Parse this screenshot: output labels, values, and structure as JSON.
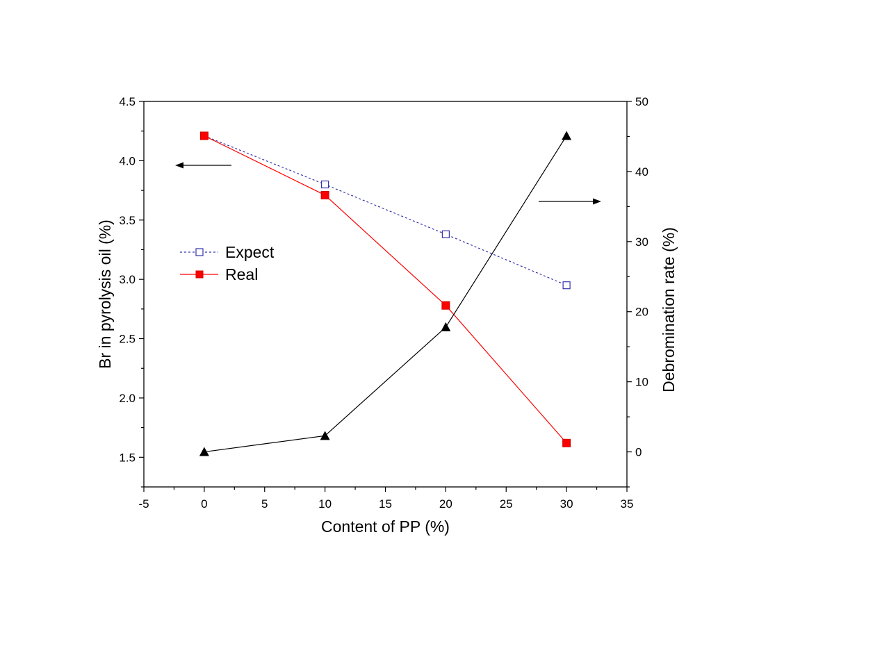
{
  "chart_data": {
    "type": "line",
    "xlabel": "Content of PP (%)",
    "ylabel_left": "Br in pyrolysis oil (%)",
    "ylabel_right": "Debromination rate (%)",
    "xlim": [
      -5,
      35
    ],
    "x_ticks": [
      -5,
      0,
      5,
      10,
      15,
      20,
      25,
      30,
      35
    ],
    "ylim_left": [
      1.25,
      4.5
    ],
    "y_ticks_left": [
      1.5,
      2.0,
      2.5,
      3.0,
      3.5,
      4.0,
      4.5
    ],
    "ylim_right": [
      -5,
      50
    ],
    "y_ticks_right": [
      0,
      10,
      20,
      30,
      40,
      50
    ],
    "grid": false,
    "legend_position": "center-left",
    "series": [
      {
        "name": "Expect",
        "axis": "left",
        "color": "#3333aa",
        "style": "dashed",
        "marker": "open-square",
        "x": [
          0,
          10,
          20,
          30
        ],
        "values": [
          4.21,
          3.8,
          3.38,
          2.95
        ]
      },
      {
        "name": "Real",
        "axis": "left",
        "color": "#ff0000",
        "style": "solid",
        "marker": "filled-square",
        "x": [
          0,
          10,
          20,
          30
        ],
        "values": [
          4.21,
          3.71,
          2.78,
          1.62
        ]
      },
      {
        "name": "",
        "axis": "right",
        "color": "#000000",
        "style": "solid",
        "marker": "filled-triangle",
        "x": [
          0,
          10,
          20,
          30
        ],
        "values": [
          0,
          2.3,
          17.8,
          45.1
        ]
      }
    ],
    "annotations": [
      {
        "type": "arrow",
        "direction": "left",
        "points_to": "left-axis"
      },
      {
        "type": "arrow",
        "direction": "right",
        "points_to": "right-axis"
      }
    ]
  }
}
